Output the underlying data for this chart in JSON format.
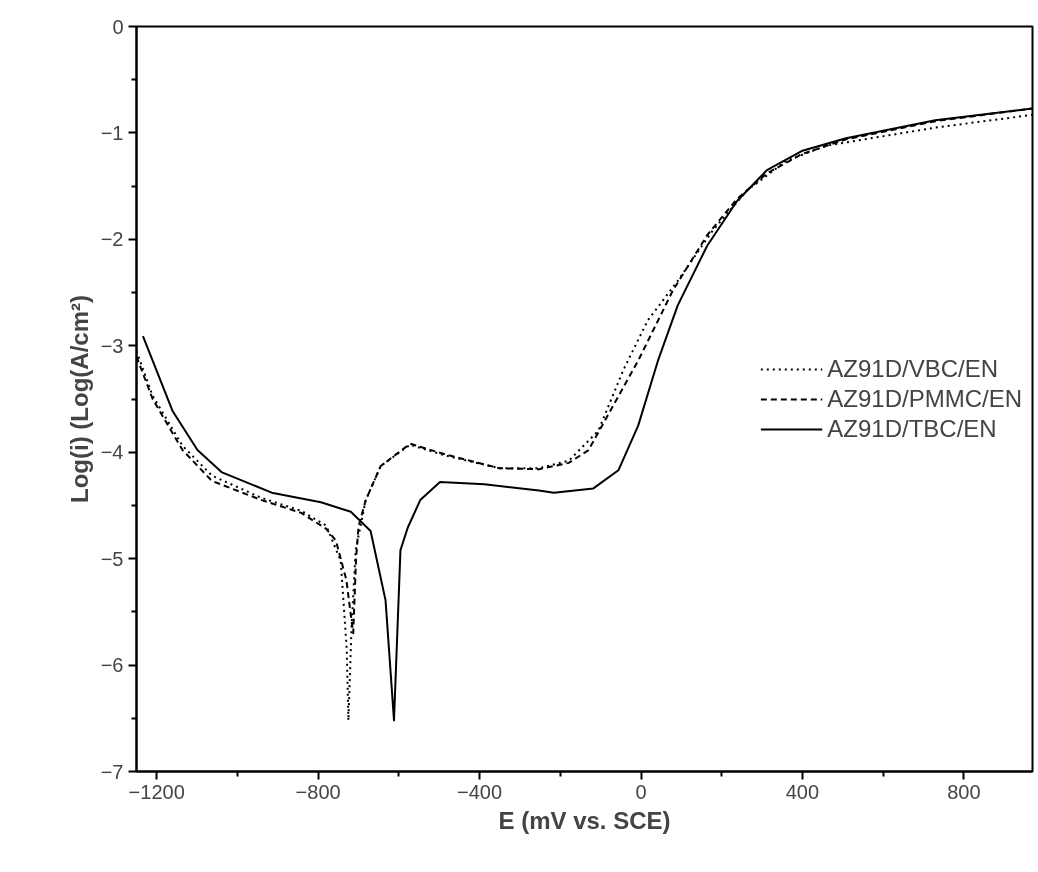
{
  "chart_data": {
    "type": "line",
    "xlabel": "E (mV vs. SCE)",
    "ylabel": "Log(i) (Log(A/cm²)",
    "xlim": [
      -1250,
      970
    ],
    "ylim": [
      -7,
      0
    ],
    "xticks": [
      -1200,
      -800,
      -400,
      0,
      400,
      800
    ],
    "yticks": [
      -7,
      -6,
      -5,
      -4,
      -3,
      -2,
      -1,
      0
    ],
    "grid": false,
    "legend": "right",
    "marker": "none",
    "series": [
      {
        "name": "AZ91D/VBC/EN",
        "color": "#000000",
        "line_style": "dotted",
        "x": [
          -1250,
          -1210,
          -1136,
          -1063,
          -940,
          -842,
          -780,
          -744,
          -729,
          -725,
          -717,
          -707,
          -682,
          -645,
          -572,
          -486,
          -351,
          -253,
          -179,
          -106,
          -44,
          17,
          91,
          177,
          263,
          361,
          459,
          729,
          970
        ],
        "values": [
          -3.05,
          -3.47,
          -3.94,
          -4.22,
          -4.43,
          -4.55,
          -4.69,
          -5.02,
          -5.86,
          -6.52,
          -5.63,
          -4.92,
          -4.45,
          -4.13,
          -3.93,
          -4.03,
          -4.15,
          -4.15,
          -4.08,
          -3.8,
          -3.23,
          -2.76,
          -2.39,
          -1.92,
          -1.54,
          -1.26,
          -1.12,
          -0.95,
          -0.83
        ]
      },
      {
        "name": "AZ91D/PMMC/EN",
        "color": "#000000",
        "line_style": "dashed",
        "x": [
          -1250,
          -1210,
          -1136,
          -1063,
          -940,
          -842,
          -780,
          -756,
          -730,
          -720,
          -713,
          -706,
          -700,
          -682,
          -645,
          -572,
          -486,
          -351,
          -253,
          -179,
          -130,
          -7,
          79,
          164,
          238,
          312,
          398,
          508,
          729,
          970
        ],
        "values": [
          -3.1,
          -3.5,
          -3.98,
          -4.27,
          -4.45,
          -4.57,
          -4.72,
          -4.83,
          -5.2,
          -5.5,
          -5.7,
          -5.0,
          -4.7,
          -4.45,
          -4.13,
          -3.92,
          -4.02,
          -4.15,
          -4.16,
          -4.1,
          -3.98,
          -3.14,
          -2.48,
          -1.96,
          -1.62,
          -1.38,
          -1.2,
          -1.06,
          -0.89,
          -0.77
        ]
      },
      {
        "name": "AZ91D/TBC/EN",
        "color": "#000000",
        "line_style": "solid",
        "x": [
          -1234,
          -1161,
          -1099,
          -1038,
          -915,
          -793,
          -719,
          -670,
          -633,
          -612,
          -596,
          -578,
          -547,
          -498,
          -388,
          -253,
          -216,
          -118,
          -56,
          -7,
          42,
          91,
          164,
          238,
          312,
          398,
          508,
          729,
          970
        ],
        "values": [
          -2.91,
          -3.61,
          -3.98,
          -4.19,
          -4.38,
          -4.47,
          -4.56,
          -4.74,
          -5.39,
          -6.52,
          -4.92,
          -4.71,
          -4.45,
          -4.28,
          -4.3,
          -4.36,
          -4.38,
          -4.34,
          -4.17,
          -3.75,
          -3.14,
          -2.62,
          -2.06,
          -1.64,
          -1.35,
          -1.17,
          -1.05,
          -0.88,
          -0.77
        ]
      }
    ]
  }
}
